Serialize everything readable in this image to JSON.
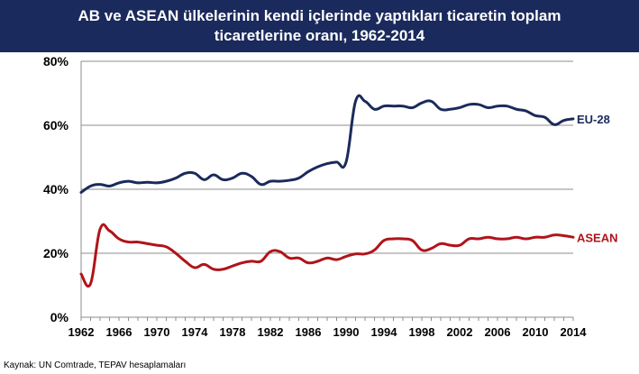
{
  "chart_data": {
    "type": "line",
    "title": {
      "line1": "AB ve ASEAN ülkelerinin kendi içlerinde yaptıkları ticaretin toplam",
      "line2": "ticaretlerine oranı, 1962-2014"
    },
    "x_ticks": [
      "1962",
      "1966",
      "1970",
      "1974",
      "1978",
      "1982",
      "1986",
      "1990",
      "1994",
      "1998",
      "2002",
      "2006",
      "2010",
      "2014"
    ],
    "y_ticks": [
      "0%",
      "20%",
      "40%",
      "60%",
      "80%"
    ],
    "xlim": [
      1962,
      2014
    ],
    "ylim": [
      0,
      80
    ],
    "y_unit": "%",
    "grid": true,
    "x": [
      1962,
      1963,
      1964,
      1965,
      1966,
      1967,
      1968,
      1969,
      1970,
      1971,
      1972,
      1973,
      1974,
      1975,
      1976,
      1977,
      1978,
      1979,
      1980,
      1981,
      1982,
      1983,
      1984,
      1985,
      1986,
      1987,
      1988,
      1989,
      1990,
      1991,
      1992,
      1993,
      1994,
      1995,
      1996,
      1997,
      1998,
      1999,
      2000,
      2001,
      2002,
      2003,
      2004,
      2005,
      2006,
      2007,
      2008,
      2009,
      2010,
      2011,
      2012,
      2013,
      2014
    ],
    "series": [
      {
        "name": "EU-28",
        "color": "#1b2a5c",
        "values": [
          39,
          41,
          41.5,
          41,
          42,
          42.5,
          42,
          42.2,
          42,
          42.5,
          43.5,
          45,
          45,
          43,
          44.5,
          43,
          43.5,
          45,
          44,
          41.5,
          42.5,
          42.5,
          42.8,
          43.5,
          45.5,
          47,
          48,
          48.5,
          48.5,
          67.5,
          67.5,
          65,
          66,
          66,
          66,
          65.5,
          67,
          67.5,
          65,
          65,
          65.5,
          66.5,
          66.5,
          65.5,
          66,
          66,
          65,
          64.5,
          63,
          62.5,
          60.2,
          61.5,
          62
        ]
      },
      {
        "name": "ASEAN",
        "color": "#b0141a",
        "values": [
          13.5,
          10.5,
          27.5,
          27,
          24.5,
          23.5,
          23.5,
          23,
          22.5,
          22,
          20,
          17.5,
          15.5,
          16.5,
          15,
          15,
          16,
          17,
          17.5,
          17.5,
          20.5,
          20.5,
          18.5,
          18.5,
          17,
          17.5,
          18.5,
          18,
          19,
          19.8,
          19.8,
          21,
          24,
          24.5,
          24.5,
          24,
          21,
          21.5,
          23,
          22.5,
          22.5,
          24.5,
          24.5,
          25,
          24.5,
          24.5,
          25,
          24.5,
          25,
          25,
          25.7,
          25.5,
          25
        ]
      }
    ]
  },
  "source_note": "Kaynak: UN Comtrade, TEPAV hesaplamaları"
}
